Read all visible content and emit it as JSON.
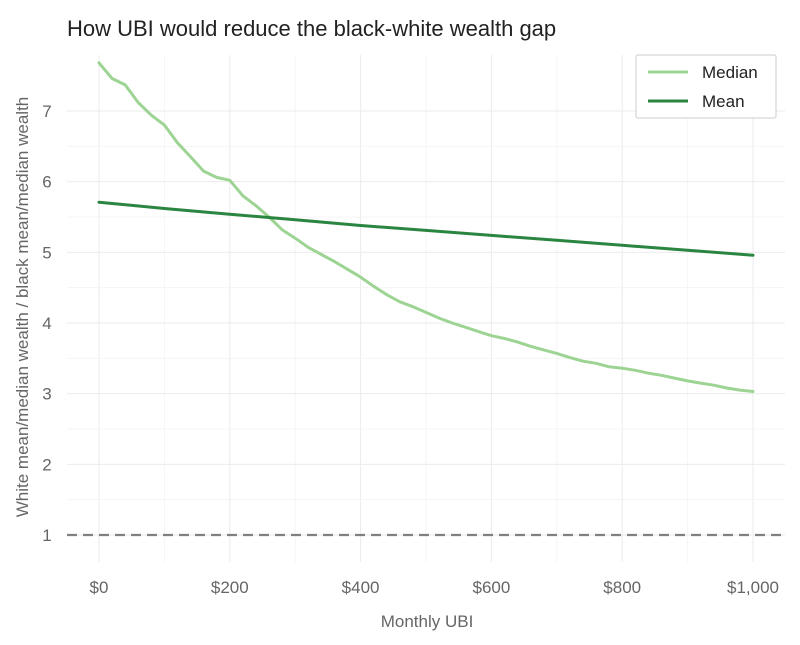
{
  "chart_data": {
    "type": "line",
    "title": "How UBI would reduce the black-white wealth gap",
    "xlabel": "Monthly UBI",
    "ylabel": "White mean/median wealth / black mean/median wealth",
    "xlim": [
      0,
      1000
    ],
    "ylim": [
      0.5,
      7.8
    ],
    "x_ticks": [
      0,
      200,
      400,
      600,
      800,
      1000
    ],
    "x_tick_labels": [
      "$0",
      "$200",
      "$400",
      "$600",
      "$800",
      "$1,000"
    ],
    "y_ticks": [
      1,
      2,
      3,
      4,
      5,
      6,
      7
    ],
    "y_tick_labels": [
      "1",
      "2",
      "3",
      "4",
      "5",
      "6",
      "7"
    ],
    "grid": true,
    "legend_position": "top-right",
    "reference_line": {
      "y": 1,
      "style": "dashed",
      "color": "#808080"
    },
    "series": [
      {
        "name": "Median",
        "color": "#9dd494",
        "x": [
          0,
          20,
          40,
          60,
          80,
          100,
          120,
          140,
          160,
          180,
          200,
          220,
          240,
          260,
          280,
          300,
          320,
          340,
          360,
          380,
          400,
          420,
          440,
          460,
          480,
          500,
          520,
          540,
          560,
          580,
          600,
          620,
          640,
          660,
          680,
          700,
          720,
          740,
          760,
          780,
          800,
          820,
          840,
          860,
          880,
          900,
          920,
          940,
          960,
          980,
          1000
        ],
        "values": [
          7.68,
          7.46,
          7.37,
          7.12,
          6.94,
          6.8,
          6.55,
          6.35,
          6.15,
          6.06,
          6.02,
          5.8,
          5.66,
          5.5,
          5.32,
          5.2,
          5.07,
          4.97,
          4.87,
          4.76,
          4.65,
          4.52,
          4.4,
          4.3,
          4.23,
          4.15,
          4.07,
          4.0,
          3.94,
          3.88,
          3.82,
          3.78,
          3.73,
          3.67,
          3.62,
          3.57,
          3.51,
          3.46,
          3.43,
          3.38,
          3.36,
          3.33,
          3.29,
          3.26,
          3.22,
          3.18,
          3.15,
          3.12,
          3.08,
          3.05,
          3.03
        ]
      },
      {
        "name": "Mean",
        "color": "#2a8540",
        "x": [
          0,
          100,
          200,
          300,
          400,
          500,
          600,
          700,
          800,
          900,
          1000
        ],
        "values": [
          5.71,
          5.62,
          5.54,
          5.46,
          5.38,
          5.31,
          5.24,
          5.17,
          5.1,
          5.03,
          4.96
        ]
      }
    ]
  }
}
